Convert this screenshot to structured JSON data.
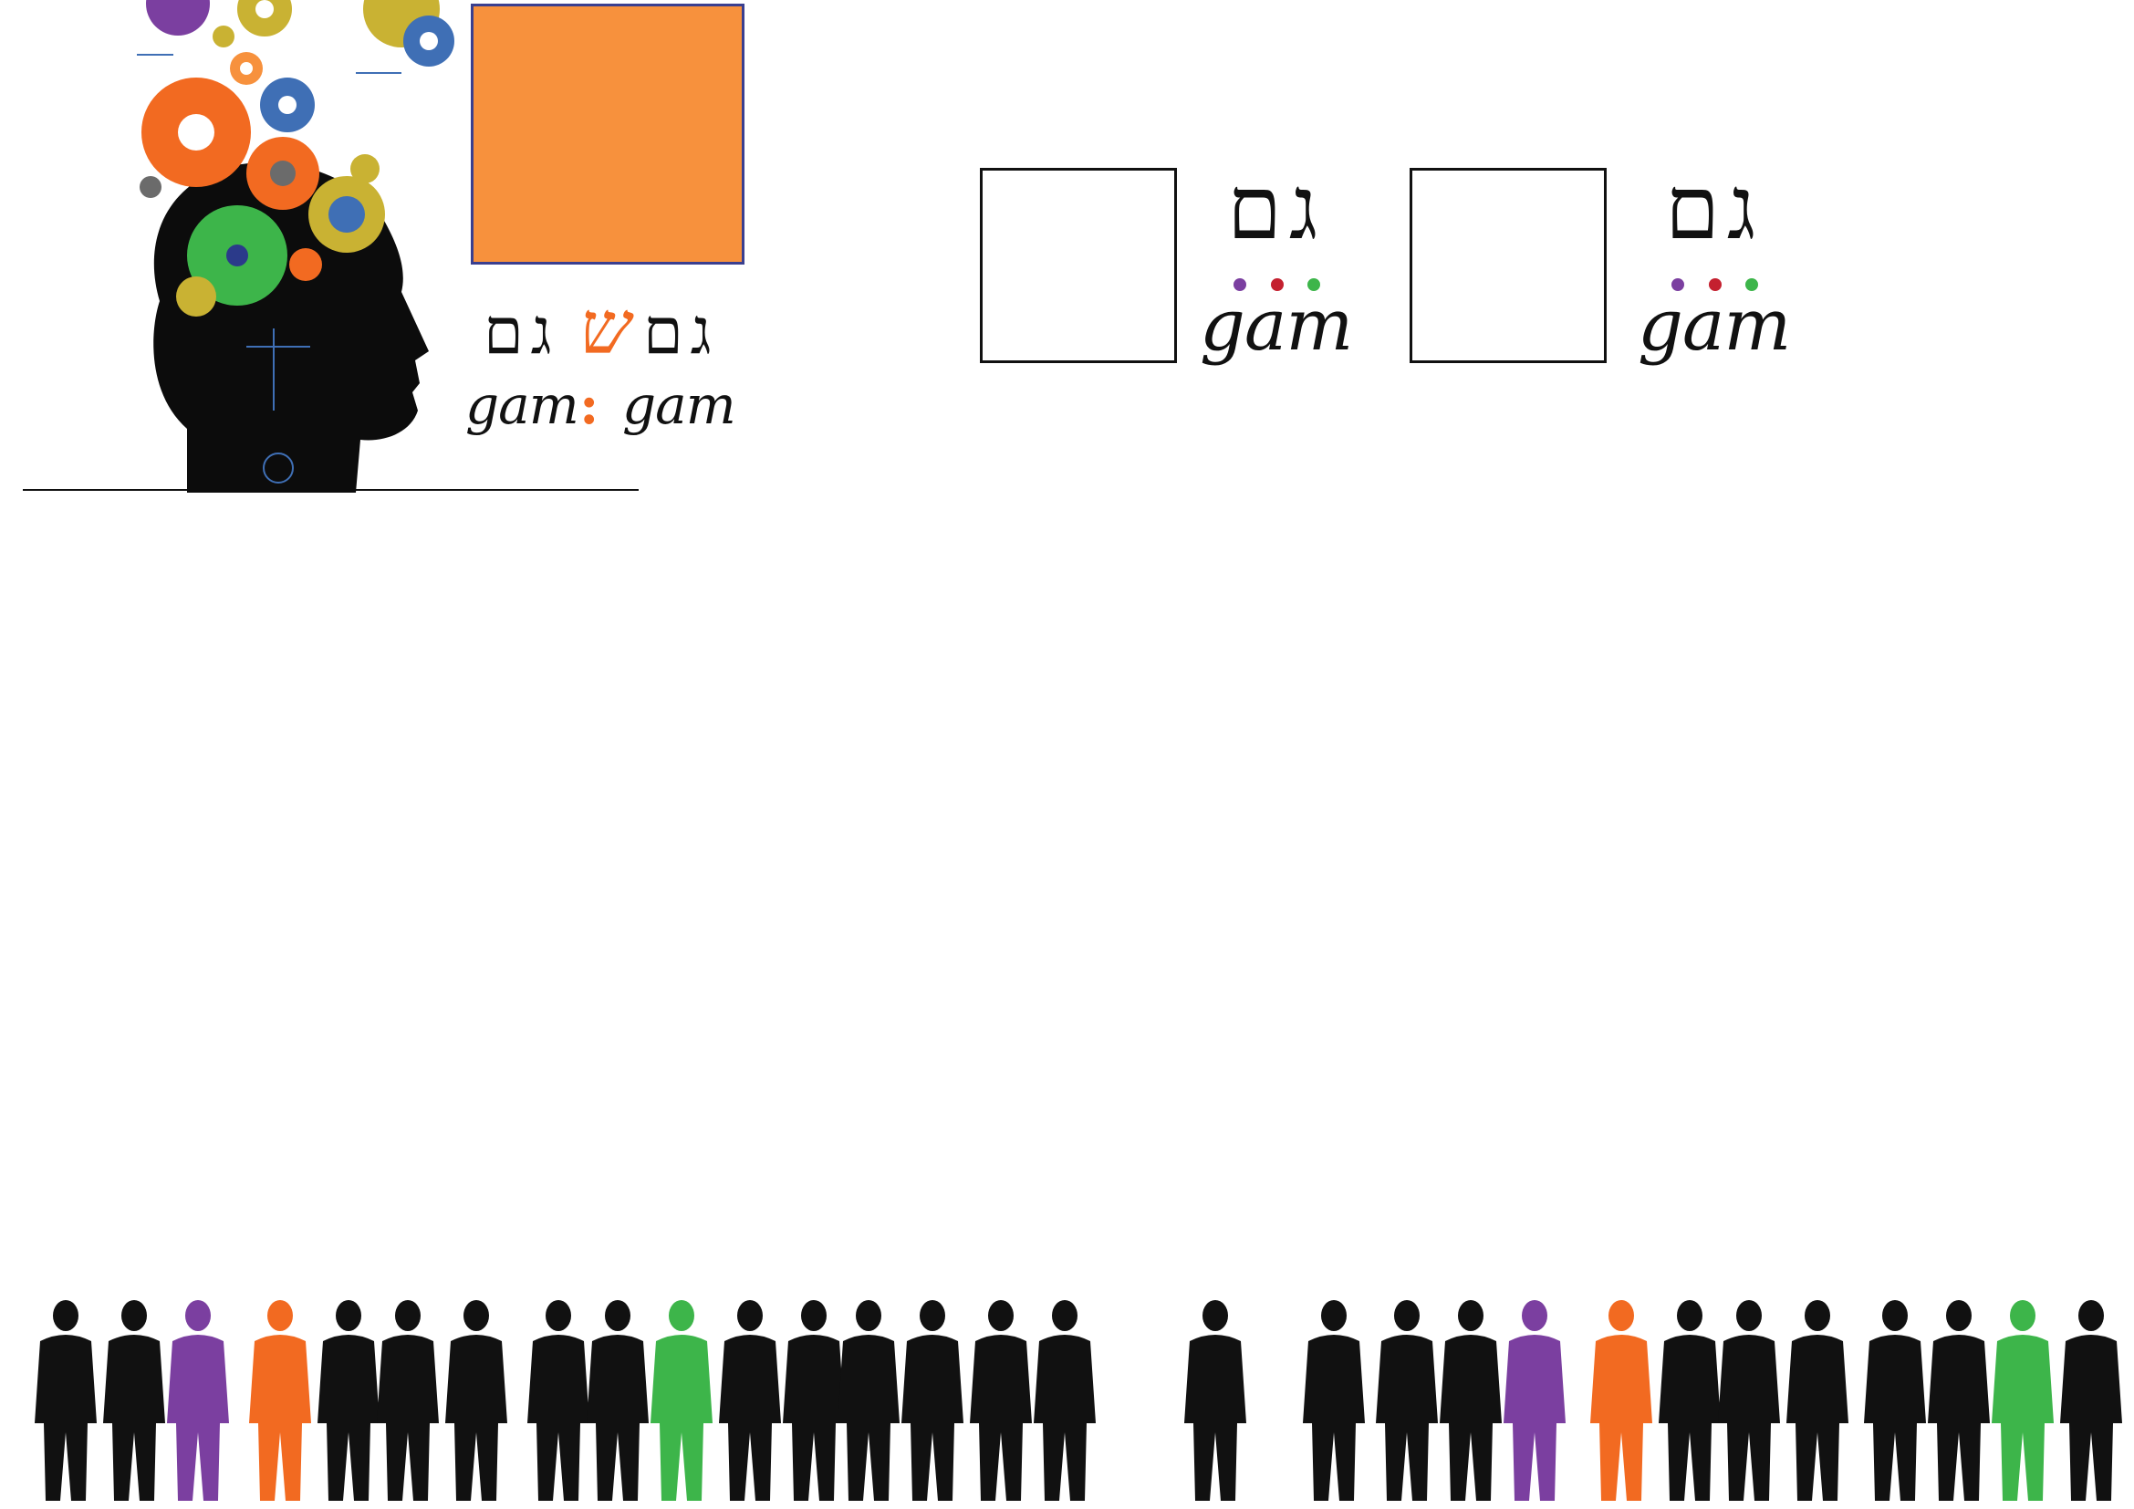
{
  "logo_main": {
    "hebrew_left": "גם",
    "hebrew_mid": "ש",
    "hebrew_right": "גם",
    "latin_left": "gam",
    "separator": ":",
    "latin_right": "gam"
  },
  "logo_a": {
    "hebrew": "גם",
    "latin": "gam"
  },
  "logo_b": {
    "hebrew": "גם",
    "latin": "gam"
  },
  "colors": {
    "orange": "#f7913d",
    "accent_orange": "#f26a21",
    "purple": "#7b3fa0",
    "red": "#c4202f",
    "green": "#3db54a",
    "black": "#111111",
    "square_border": "#3a3f8f"
  },
  "icons": [
    "gears-head-illustration",
    "people-silhouettes"
  ]
}
